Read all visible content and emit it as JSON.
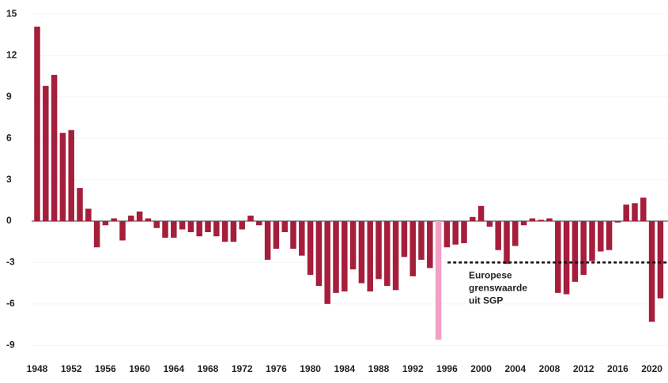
{
  "chart_data": {
    "type": "bar",
    "categories": [
      "1948",
      null,
      null,
      null,
      "1952",
      null,
      null,
      null,
      "1956",
      null,
      null,
      null,
      "1960",
      null,
      null,
      null,
      "1964",
      null,
      null,
      null,
      "1968",
      null,
      null,
      null,
      "1972",
      null,
      null,
      null,
      "1976",
      null,
      null,
      null,
      "1980",
      null,
      null,
      null,
      "1984",
      null,
      null,
      null,
      "1988",
      null,
      null,
      null,
      "1992",
      null,
      null,
      null,
      "1996",
      null,
      null,
      null,
      "2000",
      null,
      null,
      null,
      "2004",
      null,
      null,
      null,
      "2008",
      null,
      null,
      null,
      "2012",
      null,
      null,
      null,
      "2016",
      null,
      null,
      null,
      "2020",
      null
    ],
    "values": [
      14.1,
      9.8,
      10.6,
      6.4,
      6.6,
      2.4,
      0.9,
      -1.9,
      -0.3,
      0.2,
      -1.4,
      0.4,
      0.7,
      0.2,
      -0.5,
      -1.2,
      -1.2,
      -0.6,
      -0.8,
      -1.1,
      -0.8,
      -1.1,
      -1.5,
      -1.5,
      -0.6,
      0.4,
      -0.3,
      -2.8,
      -2.0,
      -0.8,
      -2.0,
      -2.5,
      -3.9,
      -4.7,
      -6.0,
      -5.2,
      -5.1,
      -3.5,
      -4.5,
      -5.1,
      -4.2,
      -4.7,
      -5.0,
      -2.6,
      -4.0,
      -2.8,
      -3.4,
      -8.6,
      -1.9,
      -1.7,
      -1.6,
      0.3,
      1.1,
      -0.4,
      -2.1,
      -3.1,
      -1.8,
      -0.3,
      0.2,
      0.1,
      0.2,
      -5.2,
      -5.3,
      -4.4,
      -3.9,
      -2.9,
      -2.2,
      -2.1,
      -0.1,
      1.2,
      1.3,
      1.7,
      -7.3,
      -5.6
    ],
    "color": "#a51e3c",
    "highlight": {
      "index": 47,
      "color": "#f2a0c4"
    },
    "ylim": [
      -10,
      16
    ],
    "yticks": [
      15,
      12,
      9,
      6,
      3,
      0,
      -3,
      -6,
      -9
    ],
    "reference": {
      "value": -3,
      "label": [
        "Europese",
        "grenswaarde",
        "uit SGP"
      ]
    }
  }
}
